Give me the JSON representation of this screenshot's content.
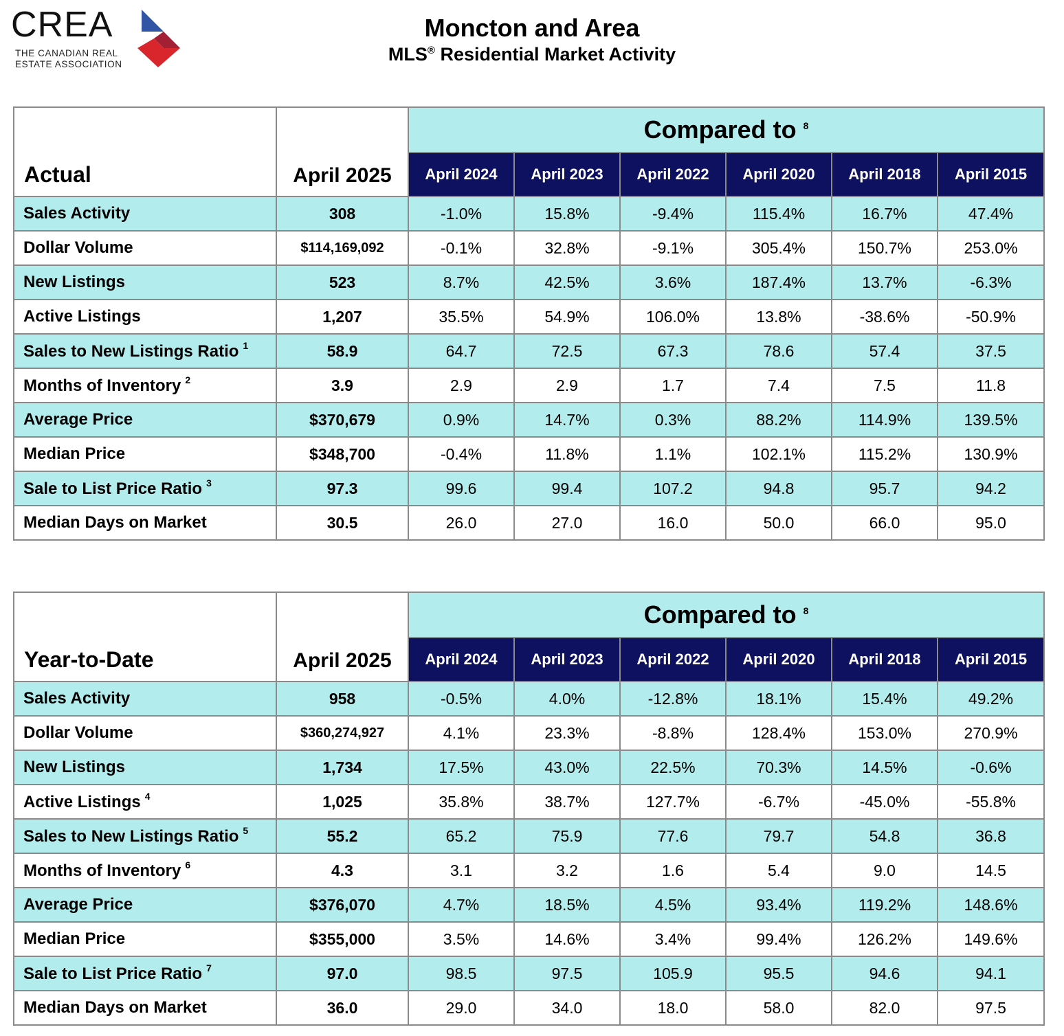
{
  "logo": {
    "wordmark": "CREA",
    "subtitle_line1": "THE CANADIAN REAL",
    "subtitle_line2": "ESTATE ASSOCIATION",
    "colors": {
      "blue": "#2f55a4",
      "red": "#d9262c",
      "dark_red": "#a31f34"
    }
  },
  "header": {
    "title": "Moncton and Area",
    "subtitle_prefix": "MLS",
    "subtitle_reg": "®",
    "subtitle_suffix": " Residential Market Activity"
  },
  "colors": {
    "teal": "#b3ecec",
    "navy": "#0e1060",
    "border": "#8a8a8a"
  },
  "tables": [
    {
      "label": "Actual",
      "period": "April 2025",
      "compared_label": "Compared to",
      "compared_note": "8",
      "compare_periods": [
        "April 2024",
        "April 2023",
        "April 2022",
        "April 2020",
        "April 2018",
        "April 2015"
      ],
      "rows": [
        {
          "label": "Sales Activity",
          "note": "",
          "value": "308",
          "compare": [
            "-1.0%",
            "15.8%",
            "-9.4%",
            "115.4%",
            "16.7%",
            "47.4%"
          ]
        },
        {
          "label": "Dollar Volume",
          "note": "",
          "value": "$114,169,092",
          "compare": [
            "-0.1%",
            "32.8%",
            "-9.1%",
            "305.4%",
            "150.7%",
            "253.0%"
          ]
        },
        {
          "label": "New Listings",
          "note": "",
          "value": "523",
          "compare": [
            "8.7%",
            "42.5%",
            "3.6%",
            "187.4%",
            "13.7%",
            "-6.3%"
          ]
        },
        {
          "label": "Active Listings",
          "note": "",
          "value": "1,207",
          "compare": [
            "35.5%",
            "54.9%",
            "106.0%",
            "13.8%",
            "-38.6%",
            "-50.9%"
          ]
        },
        {
          "label": "Sales to New Listings Ratio",
          "note": "1",
          "value": "58.9",
          "compare": [
            "64.7",
            "72.5",
            "67.3",
            "78.6",
            "57.4",
            "37.5"
          ]
        },
        {
          "label": "Months of Inventory",
          "note": "2",
          "value": "3.9",
          "compare": [
            "2.9",
            "2.9",
            "1.7",
            "7.4",
            "7.5",
            "11.8"
          ]
        },
        {
          "label": "Average Price",
          "note": "",
          "value": "$370,679",
          "compare": [
            "0.9%",
            "14.7%",
            "0.3%",
            "88.2%",
            "114.9%",
            "139.5%"
          ]
        },
        {
          "label": "Median Price",
          "note": "",
          "value": "$348,700",
          "compare": [
            "-0.4%",
            "11.8%",
            "1.1%",
            "102.1%",
            "115.2%",
            "130.9%"
          ]
        },
        {
          "label": "Sale to List Price Ratio",
          "note": "3",
          "value": "97.3",
          "compare": [
            "99.6",
            "99.4",
            "107.2",
            "94.8",
            "95.7",
            "94.2"
          ]
        },
        {
          "label": "Median Days on Market",
          "note": "",
          "value": "30.5",
          "compare": [
            "26.0",
            "27.0",
            "16.0",
            "50.0",
            "66.0",
            "95.0"
          ]
        }
      ]
    },
    {
      "label": "Year-to-Date",
      "period": "April 2025",
      "compared_label": "Compared to",
      "compared_note": "8",
      "compare_periods": [
        "April 2024",
        "April 2023",
        "April 2022",
        "April 2020",
        "April 2018",
        "April 2015"
      ],
      "rows": [
        {
          "label": "Sales Activity",
          "note": "",
          "value": "958",
          "compare": [
            "-0.5%",
            "4.0%",
            "-12.8%",
            "18.1%",
            "15.4%",
            "49.2%"
          ]
        },
        {
          "label": "Dollar Volume",
          "note": "",
          "value": "$360,274,927",
          "compare": [
            "4.1%",
            "23.3%",
            "-8.8%",
            "128.4%",
            "153.0%",
            "270.9%"
          ]
        },
        {
          "label": "New Listings",
          "note": "",
          "value": "1,734",
          "compare": [
            "17.5%",
            "43.0%",
            "22.5%",
            "70.3%",
            "14.5%",
            "-0.6%"
          ]
        },
        {
          "label": "Active Listings",
          "note": "4",
          "value": "1,025",
          "compare": [
            "35.8%",
            "38.7%",
            "127.7%",
            "-6.7%",
            "-45.0%",
            "-55.8%"
          ]
        },
        {
          "label": "Sales to New Listings Ratio",
          "note": "5",
          "value": "55.2",
          "compare": [
            "65.2",
            "75.9",
            "77.6",
            "79.7",
            "54.8",
            "36.8"
          ]
        },
        {
          "label": "Months of Inventory",
          "note": "6",
          "value": "4.3",
          "compare": [
            "3.1",
            "3.2",
            "1.6",
            "5.4",
            "9.0",
            "14.5"
          ]
        },
        {
          "label": "Average Price",
          "note": "",
          "value": "$376,070",
          "compare": [
            "4.7%",
            "18.5%",
            "4.5%",
            "93.4%",
            "119.2%",
            "148.6%"
          ]
        },
        {
          "label": "Median Price",
          "note": "",
          "value": "$355,000",
          "compare": [
            "3.5%",
            "14.6%",
            "3.4%",
            "99.4%",
            "126.2%",
            "149.6%"
          ]
        },
        {
          "label": "Sale to List Price Ratio",
          "note": "7",
          "value": "97.0",
          "compare": [
            "98.5",
            "97.5",
            "105.9",
            "95.5",
            "94.6",
            "94.1"
          ]
        },
        {
          "label": "Median Days on Market",
          "note": "",
          "value": "36.0",
          "compare": [
            "29.0",
            "34.0",
            "18.0",
            "58.0",
            "82.0",
            "97.5"
          ]
        }
      ]
    }
  ]
}
